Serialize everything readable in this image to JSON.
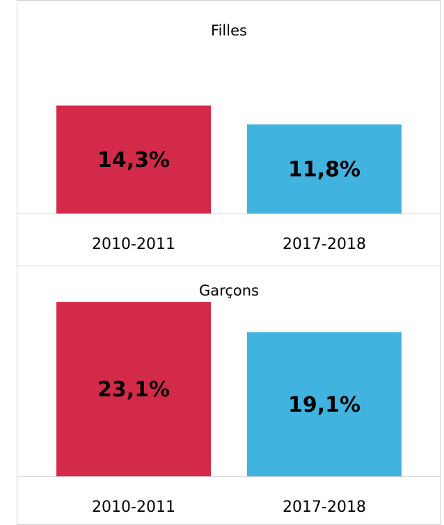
{
  "chart_data": [
    {
      "type": "bar",
      "title": "Filles",
      "categories": [
        "2010-2011",
        "2017-2018"
      ],
      "values": [
        14.3,
        11.8
      ],
      "value_labels": [
        "14,3%",
        "11,8%"
      ],
      "colors": [
        "#d42a4a",
        "#41b3df"
      ]
    },
    {
      "type": "bar",
      "title": "Garçons",
      "categories": [
        "2010-2011",
        "2017-2018"
      ],
      "values": [
        23.1,
        19.1
      ],
      "value_labels": [
        "23,1%",
        "19,1%"
      ],
      "colors": [
        "#d42a4a",
        "#41b3df"
      ]
    }
  ]
}
